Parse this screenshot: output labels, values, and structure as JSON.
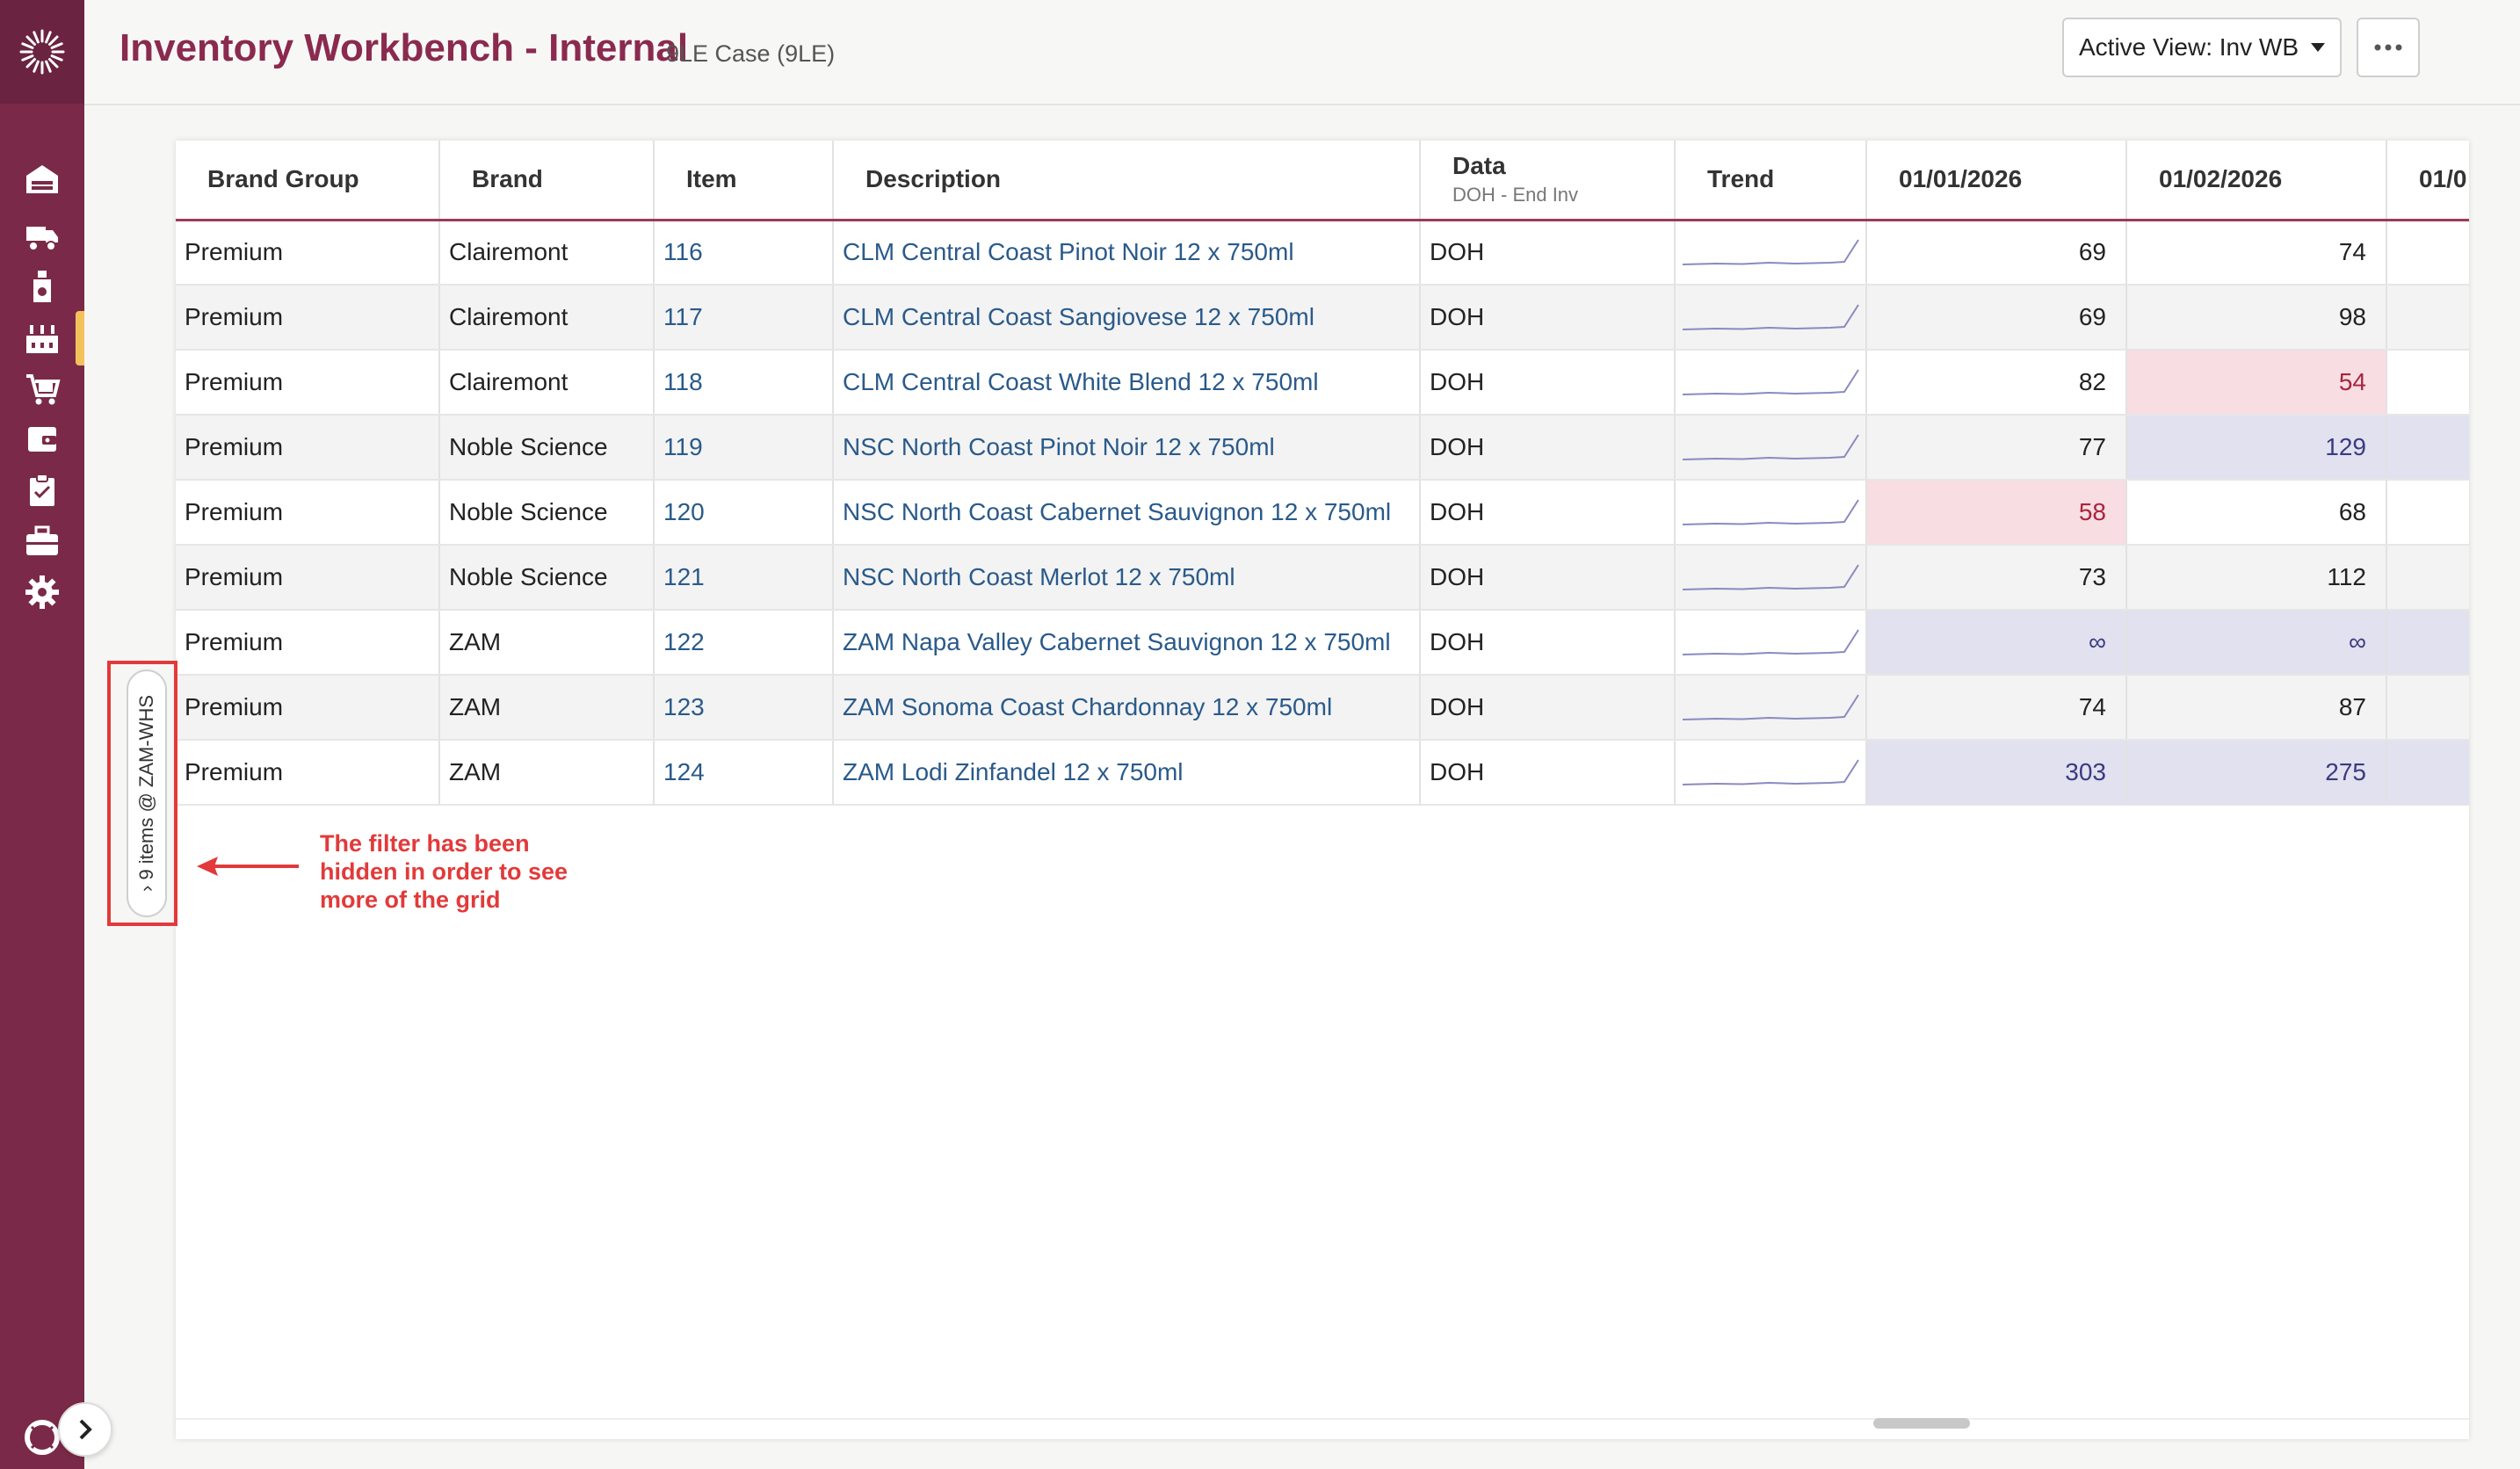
{
  "header": {
    "title": "Inventory Workbench - Internal",
    "subtitle": "9LE Case (9LE)",
    "active_view_label": "Active View: Inv WB"
  },
  "filter_tab": {
    "label": "9 items @ ZAM-WHS",
    "chevron": "›"
  },
  "annotation": {
    "text": "The filter has been hidden in order to see more of the grid"
  },
  "grid": {
    "columns": [
      {
        "key": "brand_group",
        "label": "Brand Group"
      },
      {
        "key": "brand",
        "label": "Brand"
      },
      {
        "key": "item",
        "label": "Item"
      },
      {
        "key": "description",
        "label": "Description"
      },
      {
        "key": "data",
        "label": "Data",
        "sublabel": "DOH - End Inv"
      },
      {
        "key": "trend",
        "label": "Trend"
      },
      {
        "key": "d1",
        "label": "01/01/2026"
      },
      {
        "key": "d2",
        "label": "01/02/2026"
      },
      {
        "key": "d3",
        "label": "01/0"
      }
    ],
    "rows": [
      {
        "brand_group": "Premium",
        "brand": "Clairemont",
        "item": "116",
        "description": "CLM Central Coast Pinot Noir 12 x 750ml",
        "data": "DOH",
        "d1": "69",
        "d2": "74",
        "d1_state": "",
        "d2_state": ""
      },
      {
        "brand_group": "Premium",
        "brand": "Clairemont",
        "item": "117",
        "description": "CLM Central Coast Sangiovese 12 x 750ml",
        "data": "DOH",
        "d1": "69",
        "d2": "98",
        "d1_state": "",
        "d2_state": ""
      },
      {
        "brand_group": "Premium",
        "brand": "Clairemont",
        "item": "118",
        "description": "CLM Central Coast White Blend 12 x 750ml",
        "data": "DOH",
        "d1": "82",
        "d2": "54",
        "d1_state": "",
        "d2_state": "low"
      },
      {
        "brand_group": "Premium",
        "brand": "Noble Science",
        "item": "119",
        "description": "NSC North Coast Pinot Noir 12 x 750ml",
        "data": "DOH",
        "d1": "77",
        "d2": "129",
        "d1_state": "",
        "d2_state": "high"
      },
      {
        "brand_group": "Premium",
        "brand": "Noble Science",
        "item": "120",
        "description": "NSC North Coast Cabernet Sauvignon 12 x 750ml",
        "data": "DOH",
        "d1": "58",
        "d2": "68",
        "d1_state": "low",
        "d2_state": ""
      },
      {
        "brand_group": "Premium",
        "brand": "Noble Science",
        "item": "121",
        "description": "NSC North Coast Merlot 12 x 750ml",
        "data": "DOH",
        "d1": "73",
        "d2": "112",
        "d1_state": "",
        "d2_state": ""
      },
      {
        "brand_group": "Premium",
        "brand": "ZAM",
        "item": "122",
        "description": "ZAM Napa Valley Cabernet Sauvignon 12 x 750ml",
        "data": "DOH",
        "d1": "∞",
        "d2": "∞",
        "d1_state": "high",
        "d2_state": "high"
      },
      {
        "brand_group": "Premium",
        "brand": "ZAM",
        "item": "123",
        "description": "ZAM Sonoma Coast Chardonnay 12 x 750ml",
        "data": "DOH",
        "d1": "74",
        "d2": "87",
        "d1_state": "",
        "d2_state": ""
      },
      {
        "brand_group": "Premium",
        "brand": "ZAM",
        "item": "124",
        "description": "ZAM Lodi Zinfandel 12 x 750ml",
        "data": "DOH",
        "d1": "303",
        "d2": "275",
        "d1_state": "high",
        "d2_state": "high"
      }
    ]
  },
  "colors": {
    "sidebar": "#7a2a48",
    "title": "#8a2a4e",
    "link": "#2a5a8a",
    "low_bg": "#f8dde2",
    "high_bg": "#e1e1ef",
    "annotation": "#e23a3a"
  },
  "icons": {
    "logo": "sunburst-logo-icon",
    "nav": [
      "warehouse-icon",
      "truck-icon",
      "bottle-icon",
      "factory-icon",
      "cart-icon",
      "wallet-icon",
      "clipboard-icon",
      "toolbox-icon",
      "gear-icon"
    ],
    "help": "lifebuoy-icon",
    "expand": "chevron-right-icon",
    "more": "ellipsis-icon",
    "assistant": "sparkle-icon"
  }
}
